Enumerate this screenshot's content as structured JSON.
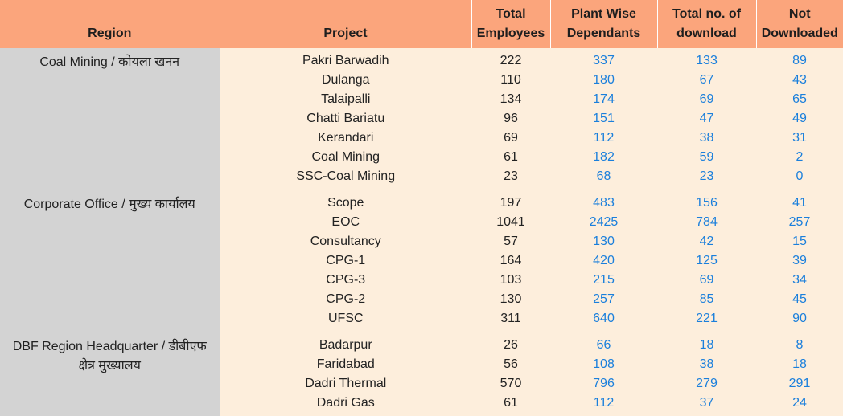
{
  "header": {
    "region": "Region",
    "project": "Project",
    "total_employees": [
      "Total",
      "Employees"
    ],
    "plant_wise_dependants": [
      "Plant Wise",
      "Dependants"
    ],
    "total_download": [
      "Total no. of",
      "download"
    ],
    "not_downloaded": [
      "Not",
      "Downloaded"
    ]
  },
  "groups": [
    {
      "region": "Coal Mining / कोयला खनन",
      "rows": [
        {
          "project": "Pakri Barwadih",
          "total_employees": "222",
          "dependants": "337",
          "downloads": "133",
          "not_downloaded": "89"
        },
        {
          "project": "Dulanga",
          "total_employees": "110",
          "dependants": "180",
          "downloads": "67",
          "not_downloaded": "43"
        },
        {
          "project": "Talaipalli",
          "total_employees": "134",
          "dependants": "174",
          "downloads": "69",
          "not_downloaded": "65"
        },
        {
          "project": "Chatti Bariatu",
          "total_employees": "96",
          "dependants": "151",
          "downloads": "47",
          "not_downloaded": "49"
        },
        {
          "project": "Kerandari",
          "total_employees": "69",
          "dependants": "112",
          "downloads": "38",
          "not_downloaded": "31"
        },
        {
          "project": "Coal Mining",
          "total_employees": "61",
          "dependants": "182",
          "downloads": "59",
          "not_downloaded": "2"
        },
        {
          "project": "SSC-Coal Mining",
          "total_employees": "23",
          "dependants": "68",
          "downloads": "23",
          "not_downloaded": "0"
        }
      ]
    },
    {
      "region": "Corporate Office / मुख्य कार्यालय",
      "rows": [
        {
          "project": "Scope",
          "total_employees": "197",
          "dependants": "483",
          "downloads": "156",
          "not_downloaded": "41"
        },
        {
          "project": "EOC",
          "total_employees": "1041",
          "dependants": "2425",
          "downloads": "784",
          "not_downloaded": "257"
        },
        {
          "project": "Consultancy",
          "total_employees": "57",
          "dependants": "130",
          "downloads": "42",
          "not_downloaded": "15"
        },
        {
          "project": "CPG-1",
          "total_employees": "164",
          "dependants": "420",
          "downloads": "125",
          "not_downloaded": "39"
        },
        {
          "project": "CPG-3",
          "total_employees": "103",
          "dependants": "215",
          "downloads": "69",
          "not_downloaded": "34"
        },
        {
          "project": "CPG-2",
          "total_employees": "130",
          "dependants": "257",
          "downloads": "85",
          "not_downloaded": "45"
        },
        {
          "project": "UFSC",
          "total_employees": "311",
          "dependants": "640",
          "downloads": "221",
          "not_downloaded": "90"
        }
      ]
    },
    {
      "region": "DBF Region Headquarter / डीबीएफ क्षेत्र मुख्यालय",
      "rows": [
        {
          "project": "Badarpur",
          "total_employees": "26",
          "dependants": "66",
          "downloads": "18",
          "not_downloaded": "8"
        },
        {
          "project": "Faridabad",
          "total_employees": "56",
          "dependants": "108",
          "downloads": "38",
          "not_downloaded": "18"
        },
        {
          "project": "Dadri Thermal",
          "total_employees": "570",
          "dependants": "796",
          "downloads": "279",
          "not_downloaded": "291"
        },
        {
          "project": "Dadri Gas",
          "total_employees": "61",
          "dependants": "112",
          "downloads": "37",
          "not_downloaded": "24"
        }
      ]
    }
  ],
  "colors": {
    "header_bg": "#fba57c",
    "region_bg": "#d3d3d3",
    "row_bg": "#fdeedc",
    "link": "#1a7fdc"
  }
}
